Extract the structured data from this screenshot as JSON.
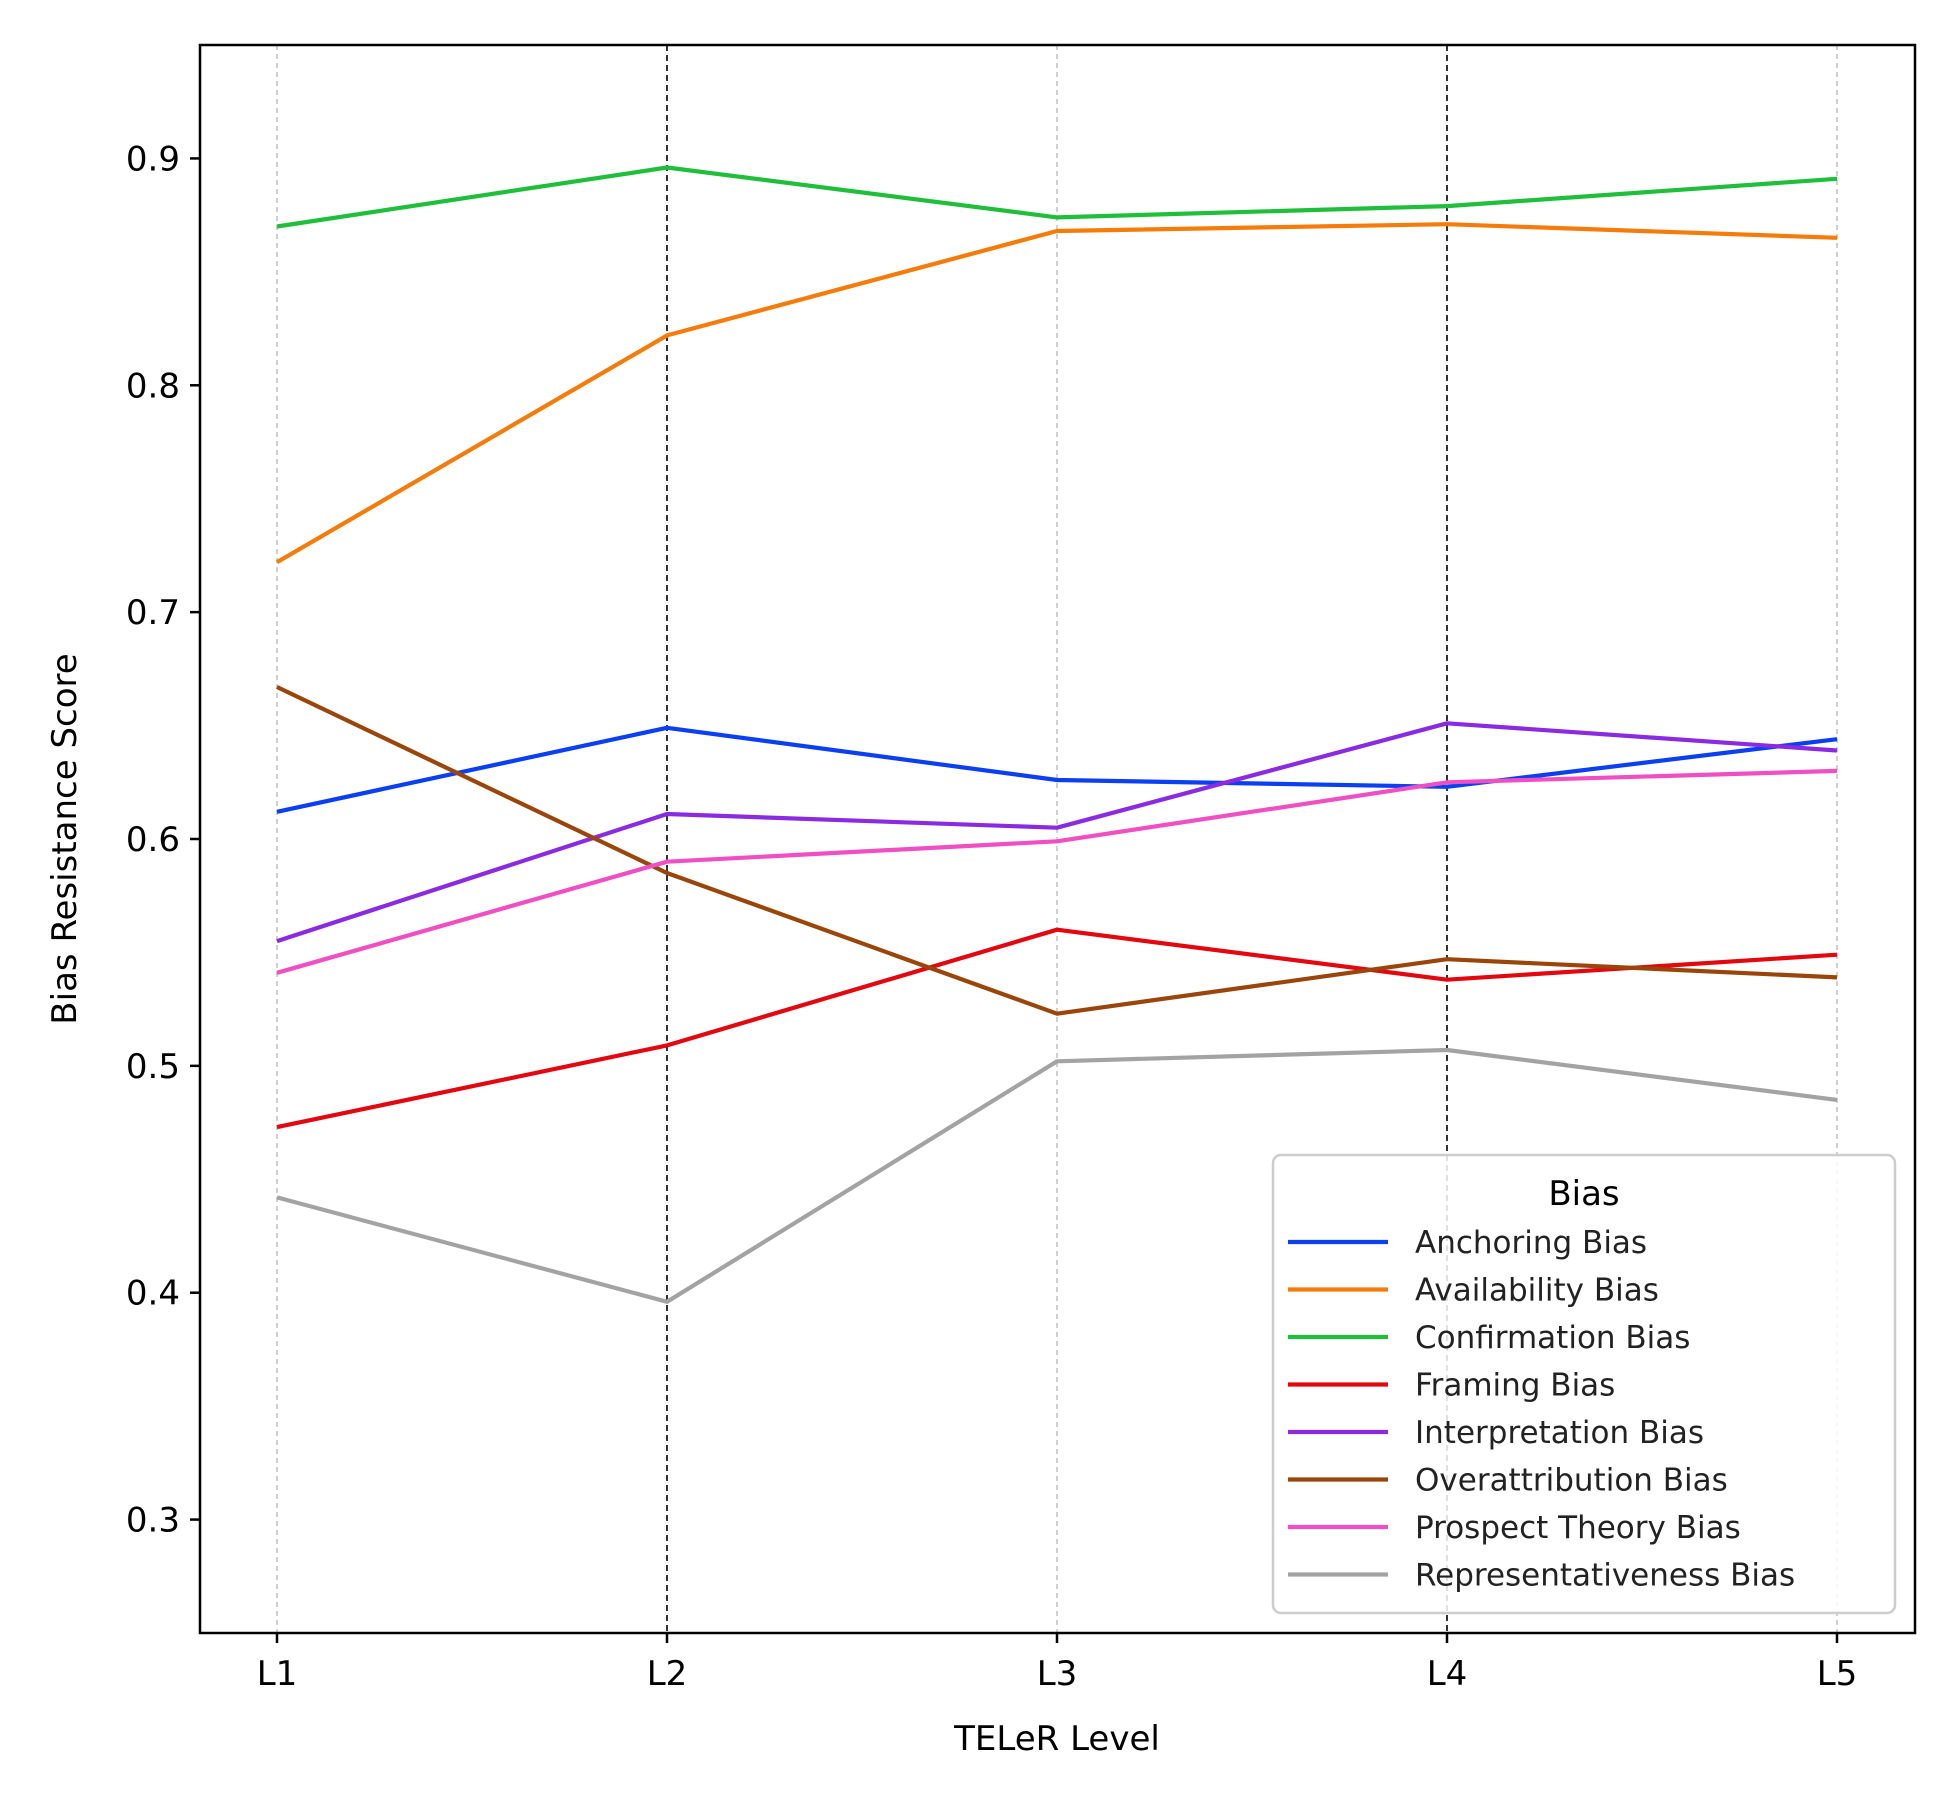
{
  "chart_data": {
    "type": "line",
    "title": "",
    "xlabel": "TELeR Level",
    "ylabel": "Bias Resistance Score",
    "categories": [
      "L1",
      "L2",
      "L3",
      "L4",
      "L5"
    ],
    "ylim": [
      0.25,
      0.95
    ],
    "yticks": [
      0.3,
      0.4,
      0.5,
      0.6,
      0.7,
      0.8,
      0.9
    ],
    "ytick_labels": [
      "0.3",
      "0.4",
      "0.5",
      "0.6",
      "0.7",
      "0.8",
      "0.9"
    ],
    "grid": "vertical dashed",
    "emphasized_gridlines": [
      "L2",
      "L4"
    ],
    "legend": {
      "title": "Bias",
      "placement": "lower-right"
    },
    "series": [
      {
        "name": "Anchoring Bias",
        "color": "#0a3ff2",
        "values": [
          0.612,
          0.649,
          0.626,
          0.623,
          0.644
        ]
      },
      {
        "name": "Availability Bias",
        "color": "#f57c0a",
        "values": [
          0.722,
          0.822,
          0.868,
          0.871,
          0.865
        ]
      },
      {
        "name": "Confirmation Bias",
        "color": "#1fbf3c",
        "values": [
          0.87,
          0.896,
          0.874,
          0.879,
          0.891
        ]
      },
      {
        "name": "Framing Bias",
        "color": "#e3070f",
        "values": [
          0.473,
          0.509,
          0.56,
          0.538,
          0.549
        ]
      },
      {
        "name": "Interpretation Bias",
        "color": "#8a2be2",
        "values": [
          0.555,
          0.611,
          0.605,
          0.651,
          0.639
        ]
      },
      {
        "name": "Overattribution Bias",
        "color": "#9a460a",
        "values": [
          0.667,
          0.585,
          0.523,
          0.547,
          0.539
        ]
      },
      {
        "name": "Prospect Theory Bias",
        "color": "#f04fc4",
        "values": [
          0.541,
          0.59,
          0.599,
          0.625,
          0.63
        ]
      },
      {
        "name": "Representativeness Bias",
        "color": "#a3a3a3",
        "values": [
          0.442,
          0.396,
          0.502,
          0.507,
          0.485
        ]
      }
    ]
  }
}
